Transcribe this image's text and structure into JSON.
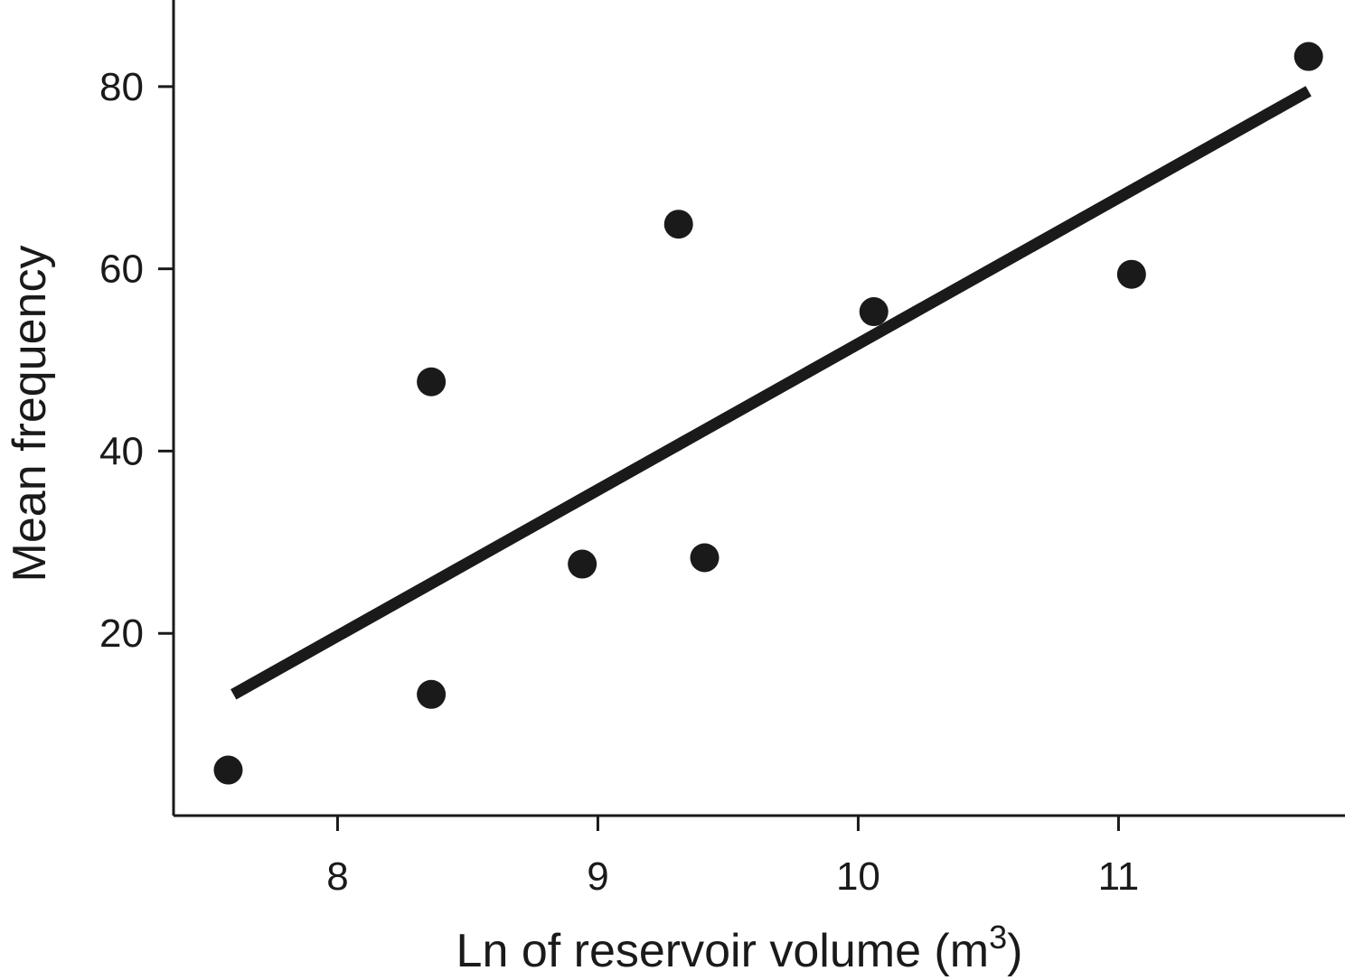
{
  "chart_data": {
    "type": "scatter",
    "xlabel": "Ln of reservoir volume (m",
    "xlabel_sup": "3",
    "xlabel_end": ")",
    "ylabel": "Mean frequency",
    "xlim": [
      7.37,
      11.87
    ],
    "ylim": [
      0,
      89.5
    ],
    "x_ticks": [
      8,
      9,
      10,
      11
    ],
    "y_ticks": [
      20,
      40,
      60,
      80
    ],
    "x_tick_labels": [
      "8",
      "9",
      "10",
      "11"
    ],
    "y_tick_labels": [
      "20",
      "40",
      "60",
      "80"
    ],
    "grid": false,
    "legend": "none",
    "series": [
      {
        "points": [
          {
            "x": 7.58,
            "y": 5.0
          },
          {
            "x": 8.36,
            "y": 13.3
          },
          {
            "x": 8.36,
            "y": 47.6
          },
          {
            "x": 8.94,
            "y": 27.6
          },
          {
            "x": 9.31,
            "y": 64.9
          },
          {
            "x": 9.41,
            "y": 28.3
          },
          {
            "x": 10.06,
            "y": 55.3
          },
          {
            "x": 11.05,
            "y": 59.4
          },
          {
            "x": 11.73,
            "y": 83.3
          }
        ]
      }
    ],
    "fit_line": {
      "x": [
        7.6,
        11.73
      ],
      "y": [
        13.3,
        79.5
      ]
    },
    "colors": {
      "marks": "#1a1a1a",
      "background": "#ffffff"
    }
  }
}
